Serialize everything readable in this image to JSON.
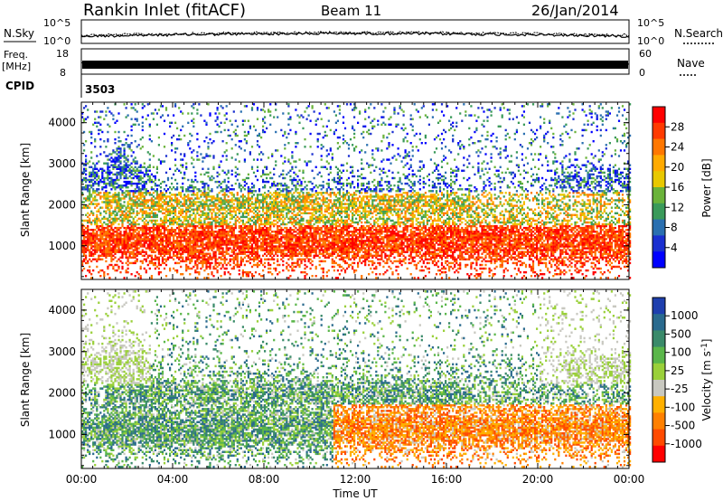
{
  "header": {
    "station": "Rankin Inlet (fitACF)",
    "beam": "Beam 11",
    "date": "26/Jan/2014"
  },
  "noise_panel": {
    "left_label": "N.Sky",
    "right_label": "N.Search",
    "tick_top": "10^5",
    "tick_bottom": "10^0"
  },
  "freq_panel": {
    "left_label_1": "Freq.",
    "left_label_2": "[MHz]",
    "left_ticks": [
      "18",
      "8"
    ],
    "right_label": "Nave",
    "right_ticks": [
      "60",
      "0"
    ]
  },
  "cpid": {
    "label": "CPID",
    "value": "3503"
  },
  "x_axis": {
    "title": "Time UT",
    "ticks": [
      "00:00",
      "04:00",
      "08:00",
      "12:00",
      "16:00",
      "20:00",
      "00:00"
    ]
  },
  "chart_data": [
    {
      "type": "heatmap",
      "name": "power",
      "ylabel": "Slant Range [km]",
      "xlabel": "Time UT",
      "xlim_hours": [
        0,
        24
      ],
      "ylim": [
        180,
        4500
      ],
      "y_ticks": [
        1000,
        2000,
        3000,
        4000
      ],
      "colorbar": {
        "label": "Power [dB]",
        "ticks": [
          "28",
          "24",
          "20",
          "16",
          "12",
          "8",
          "4"
        ],
        "colors": [
          "#ff0000",
          "#ff3a00",
          "#ff7700",
          "#ffaa00",
          "#e8c800",
          "#6ab33a",
          "#3a9a5a",
          "#2a6fb0",
          "#1a2fd0",
          "#0000ff"
        ]
      }
    },
    {
      "type": "heatmap",
      "name": "velocity",
      "ylabel": "Slant Range [km]",
      "xlabel": "Time UT",
      "xlim_hours": [
        0,
        24
      ],
      "ylim": [
        180,
        4500
      ],
      "y_ticks": [
        1000,
        2000,
        3000,
        4000
      ],
      "colorbar": {
        "label": "Velocity [m s^-1]",
        "ticks": [
          "1000",
          "500",
          "100",
          "25",
          "-25",
          "-100",
          "-500",
          "-1000"
        ],
        "colors": [
          "#1e3fae",
          "#2a6a8e",
          "#3a8a6a",
          "#5ab64a",
          "#9ad03a",
          "#c8c8c0",
          "#ffb000",
          "#ff8000",
          "#ff4a00",
          "#ff0000"
        ]
      }
    }
  ]
}
